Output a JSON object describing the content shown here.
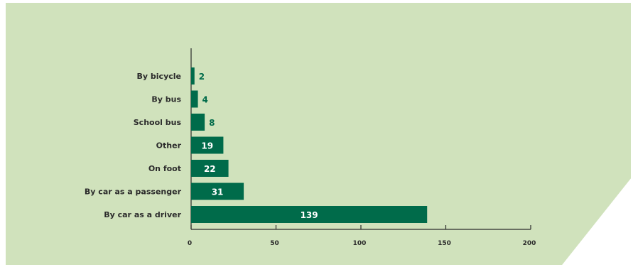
{
  "chart_data": {
    "type": "bar",
    "orientation": "horizontal",
    "categories": [
      "By bicycle",
      "By bus",
      "School bus",
      "Other",
      "On foot",
      "By car as a passenger",
      "By car as a driver"
    ],
    "values": [
      2,
      4,
      8,
      19,
      22,
      31,
      139
    ],
    "xlim": [
      0,
      200
    ],
    "xticks": [
      0,
      50,
      100,
      150,
      200
    ],
    "grid": false,
    "colors": {
      "bar": "#006b4a",
      "background": "#d0e2bc",
      "label_outside": "#006b4a",
      "label_inside": "#ffffff",
      "axis": "#2b2b2b"
    }
  }
}
